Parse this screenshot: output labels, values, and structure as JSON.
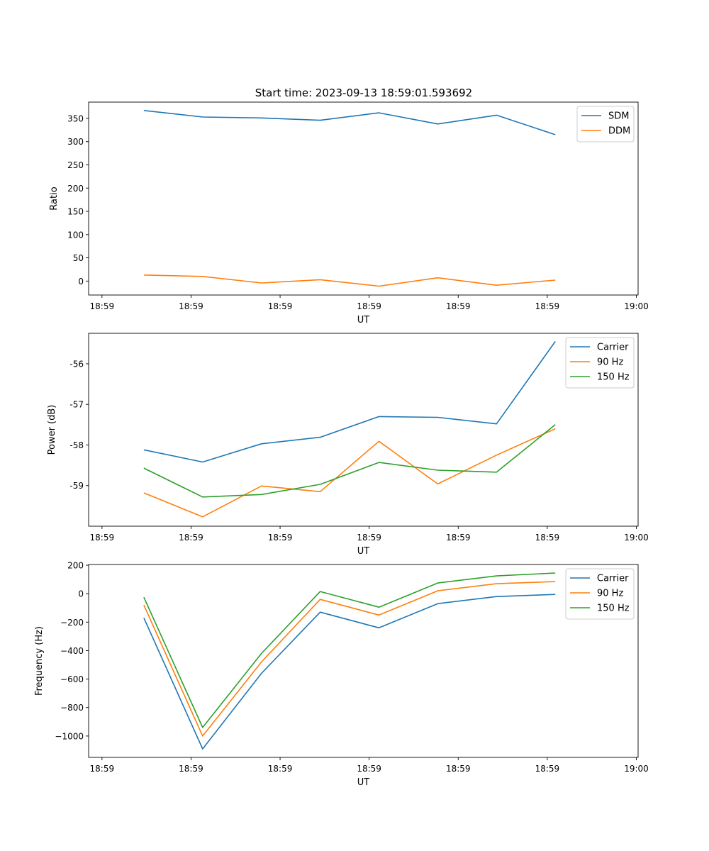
{
  "figure_title": "Start time: 2023-09-13 18:59:01.593692",
  "colors": {
    "c0": "#1f77b4",
    "c1": "#ff7f0e",
    "c2": "#2ca02c"
  },
  "chart_data": [
    {
      "type": "line",
      "title": "Start time: 2023-09-13 18:59:01.593692",
      "xlabel": "UT",
      "ylabel": "Ratio",
      "x_ticks": [
        "18:59",
        "18:59",
        "18:59",
        "18:59",
        "18:59",
        "18:59",
        "19:00"
      ],
      "x_tick_seconds": [
        0,
        10,
        20,
        30,
        40,
        50,
        60
      ],
      "xlim": [
        -1.5,
        60.2
      ],
      "ylim": [
        -30,
        385
      ],
      "y_ticks": [
        0,
        50,
        100,
        150,
        200,
        250,
        300,
        350
      ],
      "legend": "top-right",
      "x": [
        4.7,
        11.3,
        17.9,
        24.5,
        31.1,
        37.7,
        44.3,
        50.9
      ],
      "series": [
        {
          "name": "SDM",
          "color": "#1f77b4",
          "values": [
            367,
            353,
            351,
            346,
            362,
            338,
            357,
            315
          ]
        },
        {
          "name": "DDM",
          "color": "#ff7f0e",
          "values": [
            13,
            10,
            -4,
            3,
            -11,
            7,
            -9,
            2
          ]
        }
      ]
    },
    {
      "type": "line",
      "title": "",
      "xlabel": "UT",
      "ylabel": "Power (dB)",
      "x_ticks": [
        "18:59",
        "18:59",
        "18:59",
        "18:59",
        "18:59",
        "18:59",
        "19:00"
      ],
      "x_tick_seconds": [
        0,
        10,
        20,
        30,
        40,
        50,
        60
      ],
      "xlim": [
        -1.5,
        60.2
      ],
      "ylim": [
        -60.0,
        -55.25
      ],
      "y_ticks": [
        -59,
        -58,
        -57,
        -56
      ],
      "legend": "top-right",
      "x": [
        4.7,
        11.3,
        17.9,
        24.5,
        31.1,
        37.7,
        44.3,
        50.9
      ],
      "series": [
        {
          "name": "Carrier",
          "color": "#1f77b4",
          "values": [
            -58.12,
            -58.42,
            -57.97,
            -57.81,
            -57.3,
            -57.32,
            -57.48,
            -55.45
          ]
        },
        {
          "name": "90 Hz",
          "color": "#ff7f0e",
          "values": [
            -59.18,
            -59.77,
            -59.01,
            -59.15,
            -57.91,
            -58.96,
            -58.25,
            -57.6
          ]
        },
        {
          "name": "150 Hz",
          "color": "#2ca02c",
          "values": [
            -58.57,
            -59.28,
            -59.22,
            -58.97,
            -58.43,
            -58.62,
            -58.67,
            -57.5
          ]
        }
      ]
    },
    {
      "type": "line",
      "title": "",
      "xlabel": "UT",
      "ylabel": "Frequency (Hz)",
      "x_ticks": [
        "18:59",
        "18:59",
        "18:59",
        "18:59",
        "18:59",
        "18:59",
        "19:00"
      ],
      "x_tick_seconds": [
        0,
        10,
        20,
        30,
        40,
        50,
        60
      ],
      "xlim": [
        -1.5,
        60.2
      ],
      "ylim": [
        -1150,
        205
      ],
      "y_ticks": [
        -1000,
        -800,
        -600,
        -400,
        -200,
        0,
        200
      ],
      "y_tick_labels": [
        "−1000",
        "−800",
        "−600",
        "−400",
        "−200",
        "0",
        "200"
      ],
      "legend": "top-right",
      "x": [
        4.7,
        11.3,
        17.9,
        24.5,
        31.1,
        37.7,
        44.3,
        50.9
      ],
      "series": [
        {
          "name": "Carrier",
          "color": "#1f77b4",
          "values": [
            -170,
            -1090,
            -560,
            -130,
            -240,
            -70,
            -20,
            -5
          ]
        },
        {
          "name": "90 Hz",
          "color": "#ff7f0e",
          "values": [
            -80,
            -1000,
            -480,
            -40,
            -150,
            20,
            70,
            85
          ]
        },
        {
          "name": "150 Hz",
          "color": "#2ca02c",
          "values": [
            -25,
            -940,
            -420,
            15,
            -95,
            75,
            125,
            145
          ]
        }
      ]
    }
  ]
}
